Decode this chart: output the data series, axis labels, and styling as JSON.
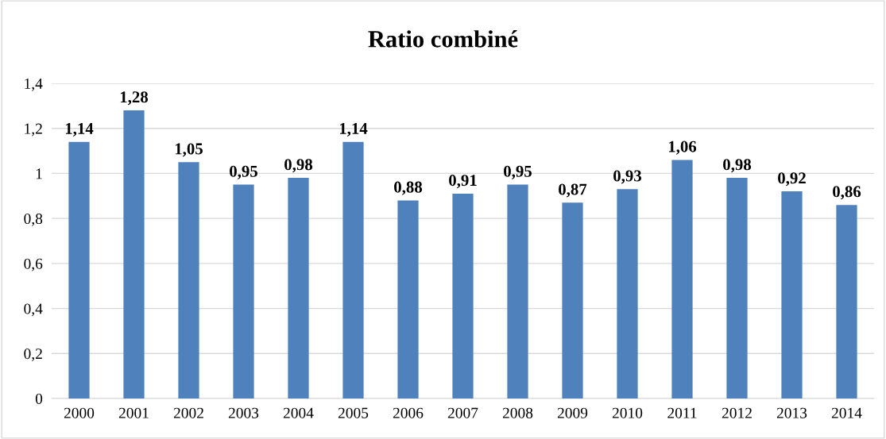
{
  "chart_data": {
    "type": "bar",
    "title": "Ratio combiné",
    "categories": [
      "2000",
      "2001",
      "2002",
      "2003",
      "2004",
      "2005",
      "2006",
      "2007",
      "2008",
      "2009",
      "2010",
      "2011",
      "2012",
      "2013",
      "2014"
    ],
    "values": [
      1.14,
      1.28,
      1.05,
      0.95,
      0.98,
      1.14,
      0.88,
      0.91,
      0.95,
      0.87,
      0.93,
      1.06,
      0.98,
      0.92,
      0.86
    ],
    "value_labels": [
      "1,14",
      "1,28",
      "1,05",
      "0,95",
      "0,98",
      "1,14",
      "0,88",
      "0,91",
      "0,95",
      "0,87",
      "0,93",
      "1,06",
      "0,98",
      "0,92",
      "0,86"
    ],
    "color": "#4f81bd",
    "ylim": [
      0,
      1.4
    ],
    "yticks": [
      0,
      {
        "value": 0.2,
        "label": "0,2"
      },
      {
        "value": 0.4,
        "label": "0,4"
      },
      {
        "value": 0.6,
        "label": "0,6"
      },
      {
        "value": 0.8,
        "label": "0,8"
      },
      1,
      {
        "value": 1.2,
        "label": "1,2"
      },
      {
        "value": 1.4,
        "label": "1,4"
      }
    ],
    "grid": "y"
  }
}
